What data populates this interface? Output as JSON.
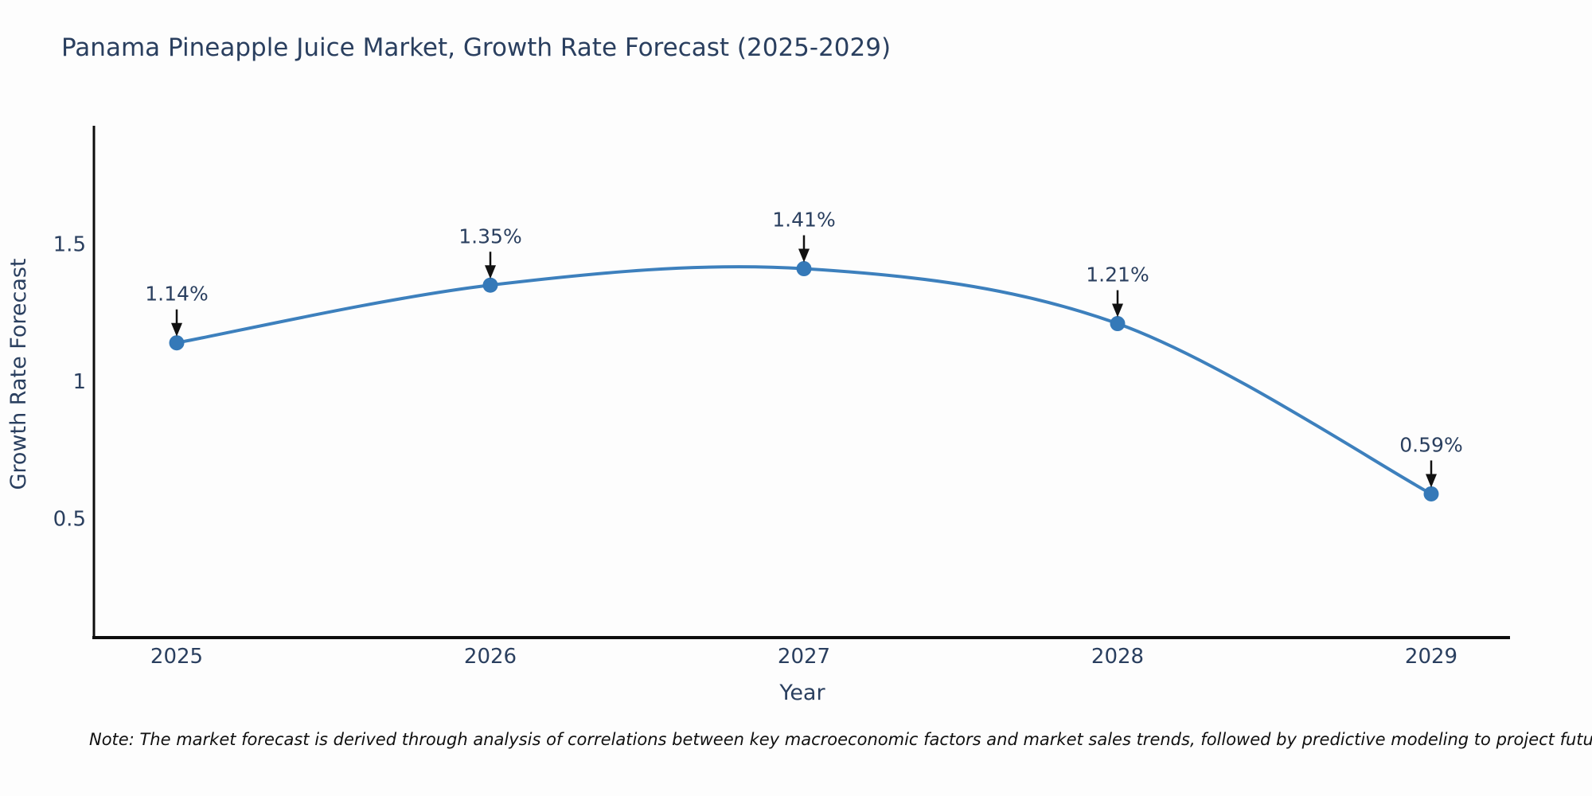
{
  "page": {
    "note": "Note: The market forecast is derived through analysis of correlations between key macroeconomic factors and market sales trends, followed by predictive modeling to project future sales"
  },
  "chart_data": {
    "type": "line",
    "line_shape": "spline",
    "title": "Panama Pineapple Juice Market, Growth Rate Forecast (2025-2029)",
    "xlabel": "Year",
    "ylabel": "Growth Rate Forecast",
    "categories": [
      "2025",
      "2026",
      "2027",
      "2028",
      "2029"
    ],
    "values": [
      1.14,
      1.35,
      1.41,
      1.21,
      0.59
    ],
    "point_labels": [
      "1.14%",
      "1.35%",
      "1.41%",
      "1.21%",
      "0.59%"
    ],
    "yticks": {
      "values": [
        0.5,
        1.0,
        1.5
      ],
      "labels": [
        "0.5",
        "1",
        "1.5"
      ]
    },
    "ylim": [
      0.07,
      1.93
    ],
    "grid": false,
    "legend": "none",
    "annotation_style": "black-down-arrow-to-point",
    "colors": {
      "line": "#3d80bd",
      "marker": "#3579b8",
      "axis": "#0d0d0d",
      "text": "#2a3f5f",
      "annotation_arrow": "#111111",
      "background": "#fdfdfd"
    }
  }
}
